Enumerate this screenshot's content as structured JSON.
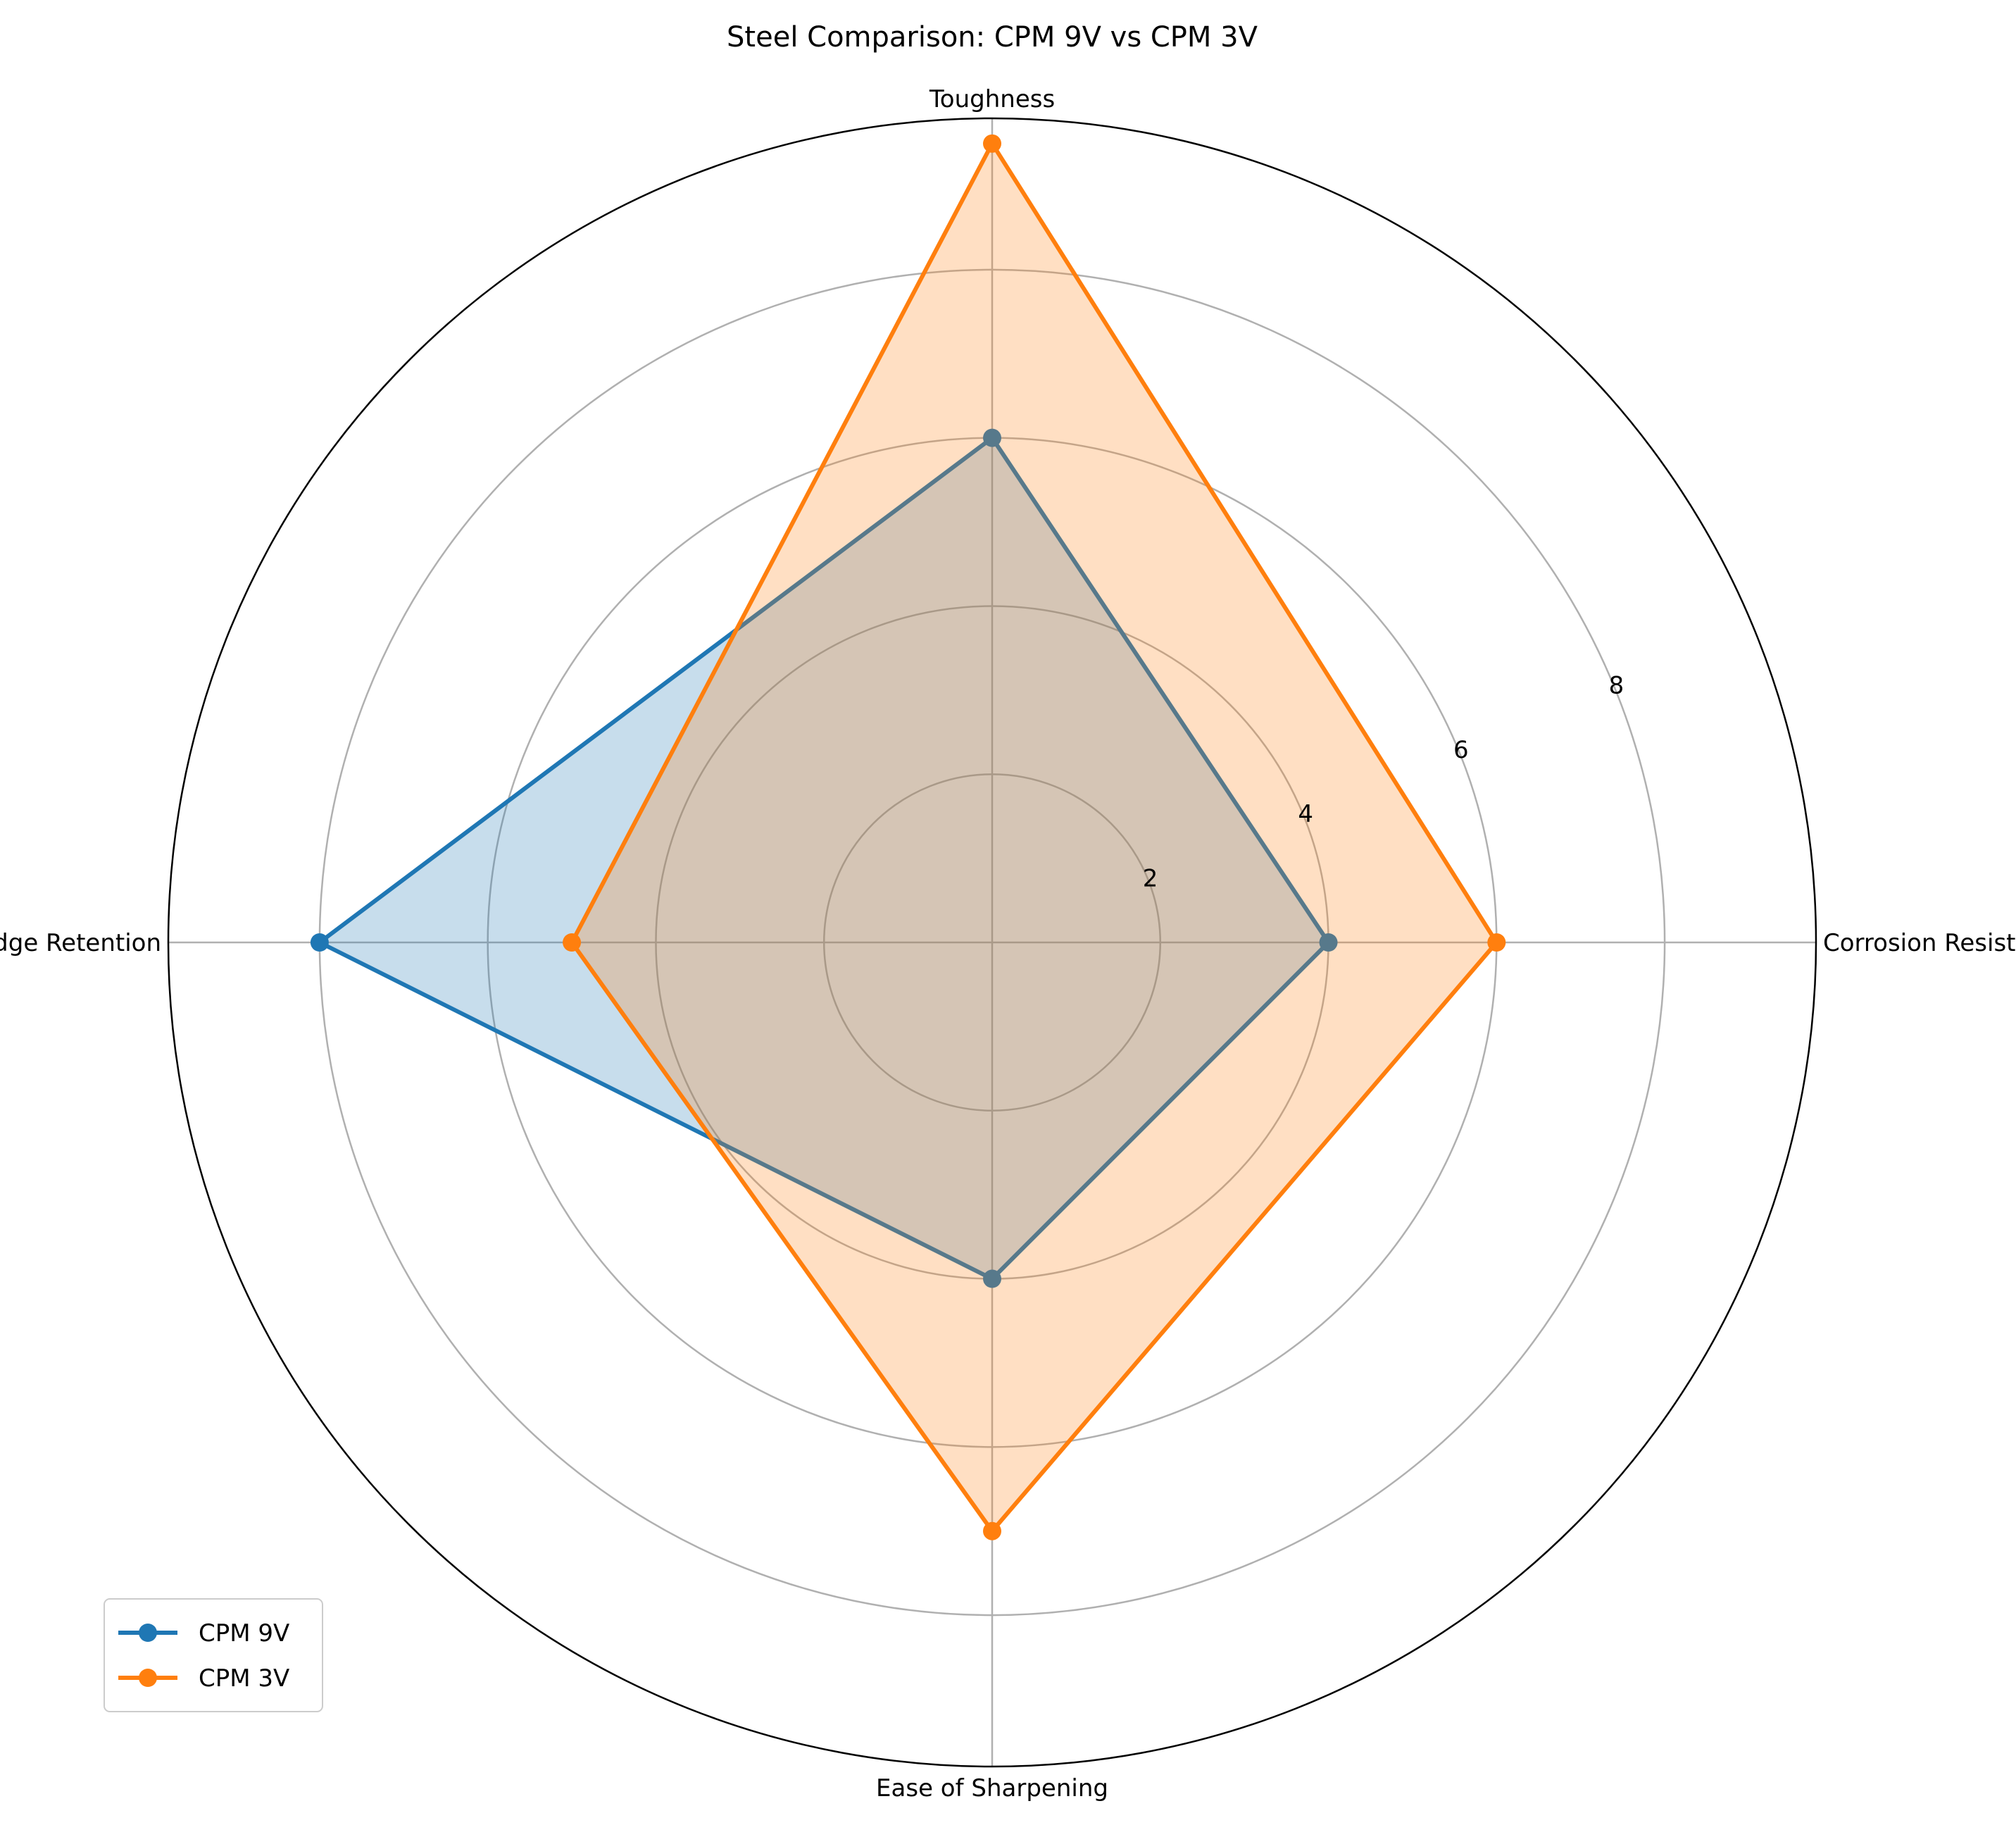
{
  "chart_data": {
    "type": "radar",
    "title": "Steel Comparison: CPM 9V vs CPM 3V",
    "categories": [
      "Corrosion Resistance",
      "Toughness",
      "Edge Retention",
      "Ease of Sharpening"
    ],
    "series": [
      {
        "name": "CPM 9V",
        "values": [
          4,
          6,
          8,
          4
        ],
        "color": "#1f77b4"
      },
      {
        "name": "CPM 3V",
        "values": [
          6,
          9.5,
          5,
          7
        ],
        "color": "#ff7f0e"
      }
    ],
    "rlim": [
      0,
      9.8
    ],
    "grid_values": [
      2,
      4,
      6,
      8
    ],
    "tick_labels": [
      "2",
      "4",
      "6",
      "8"
    ],
    "grid": true,
    "legend_position": "lower-left"
  }
}
